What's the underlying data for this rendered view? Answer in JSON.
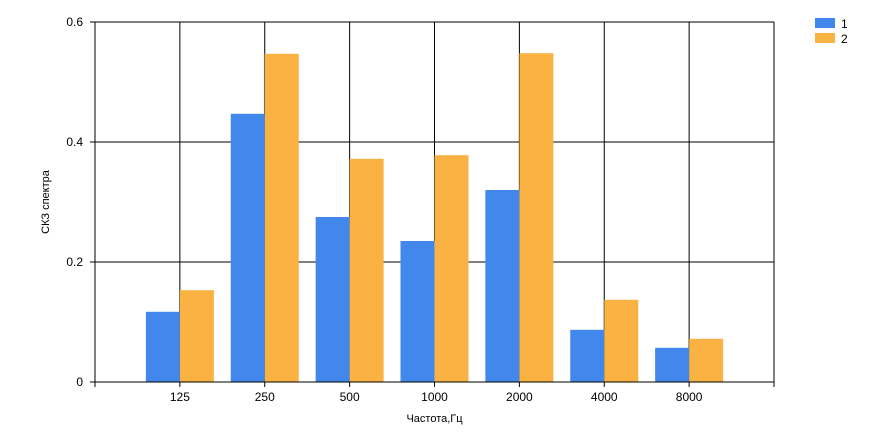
{
  "chart_data": {
    "type": "bar",
    "title": "",
    "xlabel": "Частота,Гц",
    "ylabel": "СКЗ спектра",
    "categories": [
      "125",
      "250",
      "500",
      "1000",
      "2000",
      "4000",
      "8000"
    ],
    "series": [
      {
        "name": "1",
        "color": "#4287ec",
        "values": [
          0.117,
          0.447,
          0.275,
          0.235,
          0.32,
          0.087,
          0.057
        ]
      },
      {
        "name": "2",
        "color": "#fab243",
        "values": [
          0.153,
          0.547,
          0.372,
          0.378,
          0.548,
          0.137,
          0.072
        ]
      }
    ],
    "ylim": [
      0,
      0.6
    ],
    "yticks": [
      "0",
      "0.2",
      "0.4",
      "0.6"
    ],
    "grid": true,
    "legend_position": "top-right"
  }
}
